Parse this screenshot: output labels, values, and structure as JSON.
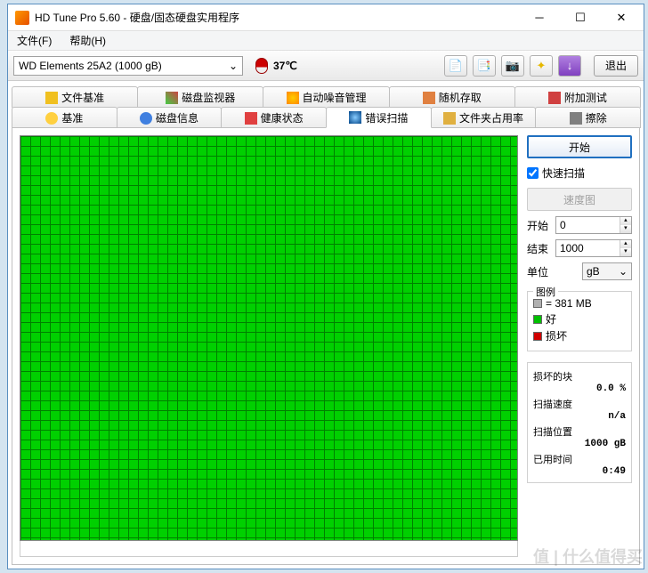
{
  "window": {
    "title": "HD Tune Pro 5.60 - 硬盘/固态硬盘实用程序"
  },
  "menu": {
    "file": "文件(F)",
    "help": "帮助(H)"
  },
  "toolbar": {
    "drive": "WD    Elements 25A2 (1000 gB)",
    "temp": "37℃",
    "exit": "退出"
  },
  "tabs": {
    "row1": [
      "文件基准",
      "磁盘监视器",
      "自动噪音管理",
      "随机存取",
      "附加测试"
    ],
    "row2": [
      "基准",
      "磁盘信息",
      "健康状态",
      "错误扫描",
      "文件夹占用率",
      "擦除"
    ],
    "active": "错误扫描"
  },
  "side": {
    "start": "开始",
    "quickscan": "快速扫描",
    "speedmap": "速度图",
    "start_lbl": "开始",
    "start_val": "0",
    "end_lbl": "结束",
    "end_val": "1000",
    "unit_lbl": "单位",
    "unit_val": "gB",
    "legend": {
      "title": "图例",
      "block": "= 381 MB",
      "ok": "好",
      "bad": "损坏"
    },
    "stats": {
      "damaged_lbl": "损坏的块",
      "damaged_val": "0.0 %",
      "speed_lbl": "扫描速度",
      "speed_val": "n/a",
      "pos_lbl": "扫描位置",
      "pos_val": "1000 gB",
      "time_lbl": "已用时间",
      "time_val": "0:49"
    }
  },
  "colors": {
    "grid_fill": "#00d000",
    "grid_line": "#008000",
    "ok": "#00c000",
    "bad": "#d00000",
    "block": "#b0b0b0"
  },
  "watermark": "值 | 什么值得买"
}
